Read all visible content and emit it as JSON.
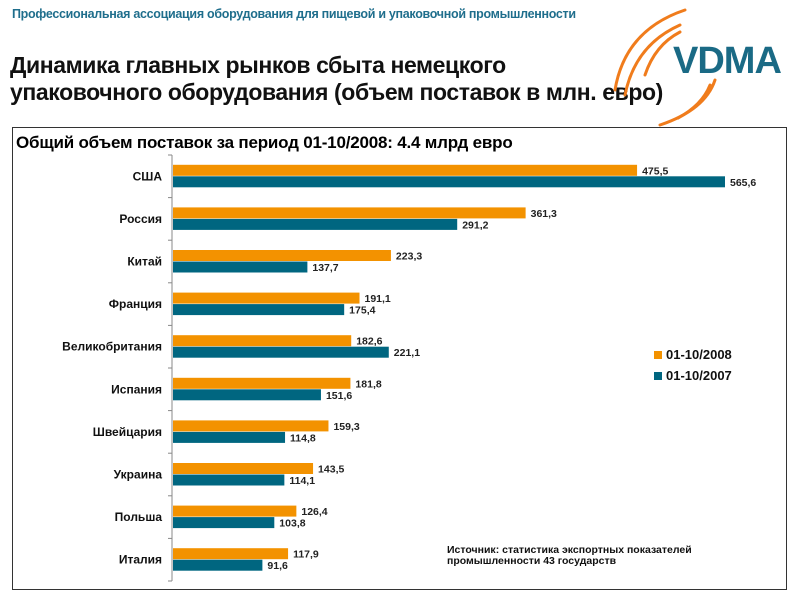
{
  "header": {
    "association": "Профессиональная ассоциация оборудования для пищевой и упаковочной промышленности",
    "title_line1": "Динамика главных рынков сбыта немецкого",
    "title_line2": "упаковочного оборудования (объем поставок в млн. евро)",
    "logo_text": "VDMA",
    "logo_colors": {
      "text": "#1a6a85",
      "arcs": "#f07c1c"
    }
  },
  "source_note": {
    "line1": "Источник: статистика  экспортных показателей",
    "line2": "промышленности 43 государств"
  },
  "chart_data": {
    "type": "bar",
    "orientation": "horizontal",
    "title": "Общий объем поставок за период 01-10/2008: 4.4 млрд евро",
    "xlabel": "",
    "ylabel": "",
    "xlim": [
      0,
      600
    ],
    "grid": false,
    "legend_position": "right",
    "categories": [
      "США",
      "Россия",
      "Китай",
      "Франция",
      "Великобритания",
      "Испания",
      "Швейцария",
      "Украина",
      "Польша",
      "Италия"
    ],
    "series": [
      {
        "name": "01-10/2008",
        "color": "#f39200",
        "values": [
          475.5,
          361.3,
          223.3,
          191.1,
          182.6,
          181.8,
          159.3,
          143.5,
          126.4,
          117.9
        ],
        "labels": [
          "475,5",
          "361,3",
          "223,3",
          "191,1",
          "182,6",
          "181,8",
          "159,3",
          "143,5",
          "126,4",
          "117,9"
        ]
      },
      {
        "name": "01-10/2007",
        "color": "#006680",
        "values": [
          565.6,
          291.2,
          137.7,
          175.4,
          221.1,
          151.6,
          114.8,
          114.1,
          103.8,
          91.6
        ],
        "labels": [
          "565,6",
          "291,2",
          "137,7",
          "175,4",
          "221,1",
          "151,6",
          "114,8",
          "114,1",
          "103,8",
          "91,6"
        ]
      }
    ]
  }
}
